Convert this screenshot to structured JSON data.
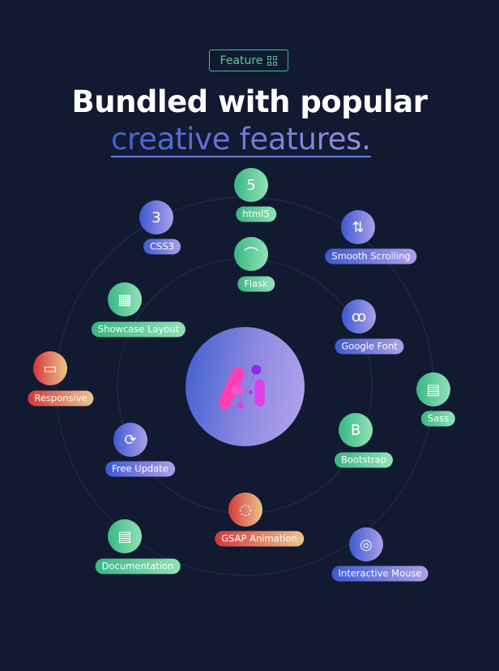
{
  "header": {
    "badge_label": "Feature",
    "badge_icon": "grid-icon",
    "title_line1": "Bundled with popular",
    "title_line2": "creative features."
  },
  "center_logo": {
    "icon": "ai-logo",
    "text": "Ai"
  },
  "colors": {
    "background": "#121a31",
    "green": "#37b784",
    "blue": "#3b5ad2",
    "red": "#d6363a",
    "badge": "#4fcf98"
  },
  "features": [
    {
      "label": "html5",
      "icon": "html5-icon",
      "color": "green"
    },
    {
      "label": "CSS3",
      "icon": "css3-icon",
      "color": "blue"
    },
    {
      "label": "Smooth Scrolling",
      "icon": "mouse-scroll-icon",
      "color": "blue"
    },
    {
      "label": "Flask",
      "icon": "flask-icon",
      "color": "green"
    },
    {
      "label": "Showcase Layout",
      "icon": "layout-icon",
      "color": "green"
    },
    {
      "label": "Google Font",
      "icon": "google-font-icon",
      "color": "blue"
    },
    {
      "label": "Responsive",
      "icon": "devices-icon",
      "color": "red"
    },
    {
      "label": "Sass",
      "icon": "sass-file-icon",
      "color": "green"
    },
    {
      "label": "Bootstrap",
      "icon": "bootstrap-icon",
      "color": "green"
    },
    {
      "label": "Free Update",
      "icon": "refresh-icon",
      "color": "blue"
    },
    {
      "label": "GSAP Animation",
      "icon": "gsap-icon",
      "color": "red"
    },
    {
      "label": "Documentation",
      "icon": "documents-icon",
      "color": "green"
    },
    {
      "label": "Interactive Mouse",
      "icon": "cursor-click-icon",
      "color": "blue"
    }
  ]
}
